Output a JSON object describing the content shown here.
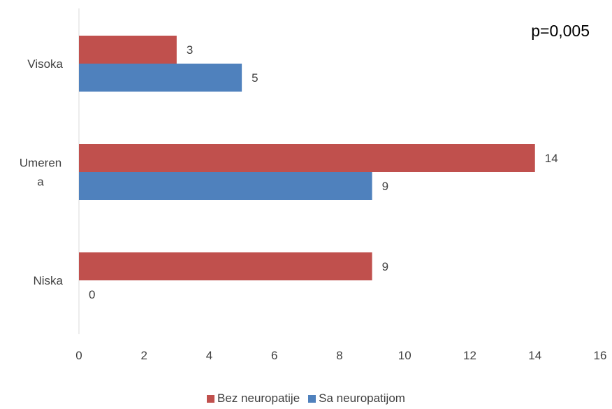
{
  "chart_data": {
    "type": "bar",
    "orientation": "horizontal",
    "categories": [
      "Visoka",
      "Umerena",
      "Niska"
    ],
    "series": [
      {
        "name": "Bez neuropatije",
        "values": [
          3,
          14,
          9
        ],
        "color": "#C0504D"
      },
      {
        "name": "Sa neuropatijom",
        "values": [
          5,
          9,
          0
        ],
        "color": "#4F81BD"
      }
    ],
    "xlim": [
      0,
      16
    ],
    "xticks": [
      0,
      2,
      4,
      6,
      8,
      10,
      12,
      14,
      16
    ],
    "annotation": "p=0,005",
    "legend_position": "bottom",
    "grid": false
  }
}
